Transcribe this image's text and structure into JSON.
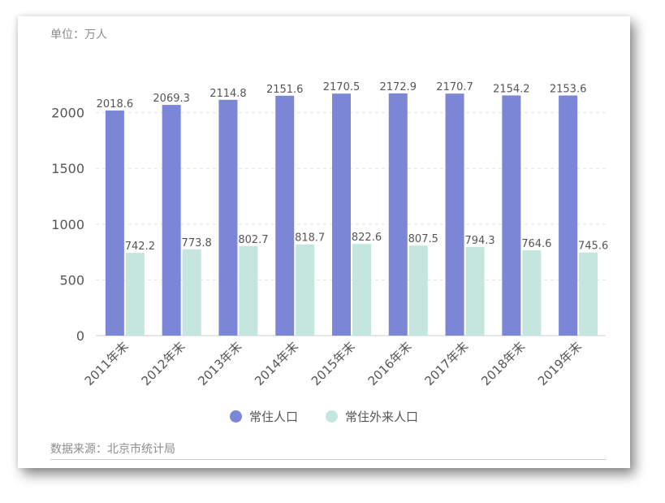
{
  "unit_label": "单位：万人",
  "source_label": "数据来源：北京市统计局",
  "colors": {
    "resident": "#7b86d6",
    "migrant": "#c5e6df",
    "axis_text": "#555555",
    "value_text": "#555555",
    "grid": "#e3e3e3"
  },
  "chart_data": {
    "type": "bar",
    "categories": [
      "2011年末",
      "2012年末",
      "2013年末",
      "2014年末",
      "2015年末",
      "2016年末",
      "2017年末",
      "2018年末",
      "2019年末"
    ],
    "series": [
      {
        "name": "常住人口",
        "values": [
          2018.6,
          2069.3,
          2114.8,
          2151.6,
          2170.5,
          2172.9,
          2170.7,
          2154.2,
          2153.6
        ]
      },
      {
        "name": "常住外来人口",
        "values": [
          742.2,
          773.8,
          802.7,
          818.7,
          822.6,
          807.5,
          794.3,
          764.6,
          745.6
        ]
      }
    ],
    "ylim": [
      0,
      2500
    ],
    "yticks": [
      0,
      500,
      1000,
      1500,
      2000
    ],
    "grid": true,
    "legend_position": "bottom"
  }
}
